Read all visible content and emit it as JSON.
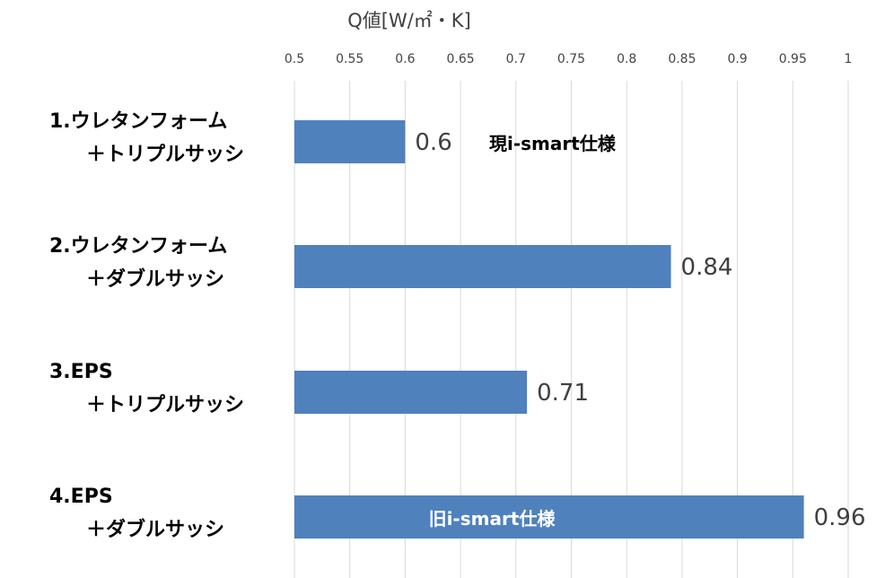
{
  "chart_data": {
    "type": "bar",
    "orientation": "horizontal",
    "title": "Q値[W/㎡・K]",
    "categories": [
      [
        "1.ウレタンフォーム",
        "＋トリプルサッシ"
      ],
      [
        "2.ウレタンフォーム",
        "＋ダブルサッシ"
      ],
      [
        "3.EPS",
        "＋トリプルサッシ"
      ],
      [
        "4.EPS",
        "＋ダブルサッシ"
      ]
    ],
    "values": [
      0.6,
      0.84,
      0.71,
      0.96
    ],
    "value_labels": [
      "0.6",
      "0.84",
      "0.71",
      "0.96"
    ],
    "annotations": [
      {
        "category_index": 0,
        "text": "現i-smart仕様",
        "placement": "outside-right"
      },
      {
        "category_index": 3,
        "text": "旧i-smart仕様",
        "placement": "inside"
      }
    ],
    "xlim": [
      0.5,
      1.0
    ],
    "x_ticks": [
      "0.5",
      "0.55",
      "0.6",
      "0.65",
      "0.7",
      "0.75",
      "0.8",
      "0.85",
      "0.9",
      "0.95",
      "1"
    ],
    "axis_position": "top",
    "grid": true,
    "bar_color": "#4f81bd",
    "grid_color": "#d9d9d9"
  }
}
